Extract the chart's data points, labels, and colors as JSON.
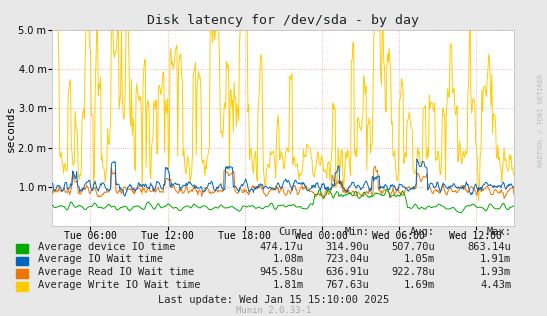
{
  "title": "Disk latency for /dev/sda - by day",
  "ylabel": "seconds",
  "background_color": "#e8e8e8",
  "plot_bg_color": "#ffffff",
  "ylim": [
    0,
    0.005
  ],
  "yticks": [
    0.001,
    0.002,
    0.003,
    0.004,
    0.005
  ],
  "ytick_labels": [
    "1.0 m",
    "2.0 m",
    "3.0 m",
    "4.0 m",
    "5.0 m"
  ],
  "xtick_labels": [
    "Tue 06:00",
    "Tue 12:00",
    "Tue 18:00",
    "Wed 00:00",
    "Wed 06:00",
    "Wed 12:00"
  ],
  "watermark": "RRDTOOL / TOBI OETIKER",
  "legend_items": [
    {
      "label": "Average device IO time",
      "color": "#00aa00"
    },
    {
      "label": "Average IO Wait time",
      "color": "#0066bb"
    },
    {
      "label": "Average Read IO Wait time",
      "color": "#ee7700"
    },
    {
      "label": "Average Write IO Wait time",
      "color": "#ffcc00"
    }
  ],
  "legend_stats_header": [
    "Cur:",
    "Min:",
    "Avg:",
    "Max:"
  ],
  "legend_stats": [
    [
      "474.17u",
      "314.90u",
      "507.70u",
      "863.14u"
    ],
    [
      "1.08m",
      "723.04u",
      "1.05m",
      "1.91m"
    ],
    [
      "945.58u",
      "636.91u",
      "922.78u",
      "1.93m"
    ],
    [
      "1.81m",
      "767.63u",
      "1.69m",
      "4.43m"
    ]
  ],
  "last_update": "Last update: Wed Jan 15 15:10:00 2025",
  "munin_version": "Munin 2.0.33-1",
  "num_points": 600
}
